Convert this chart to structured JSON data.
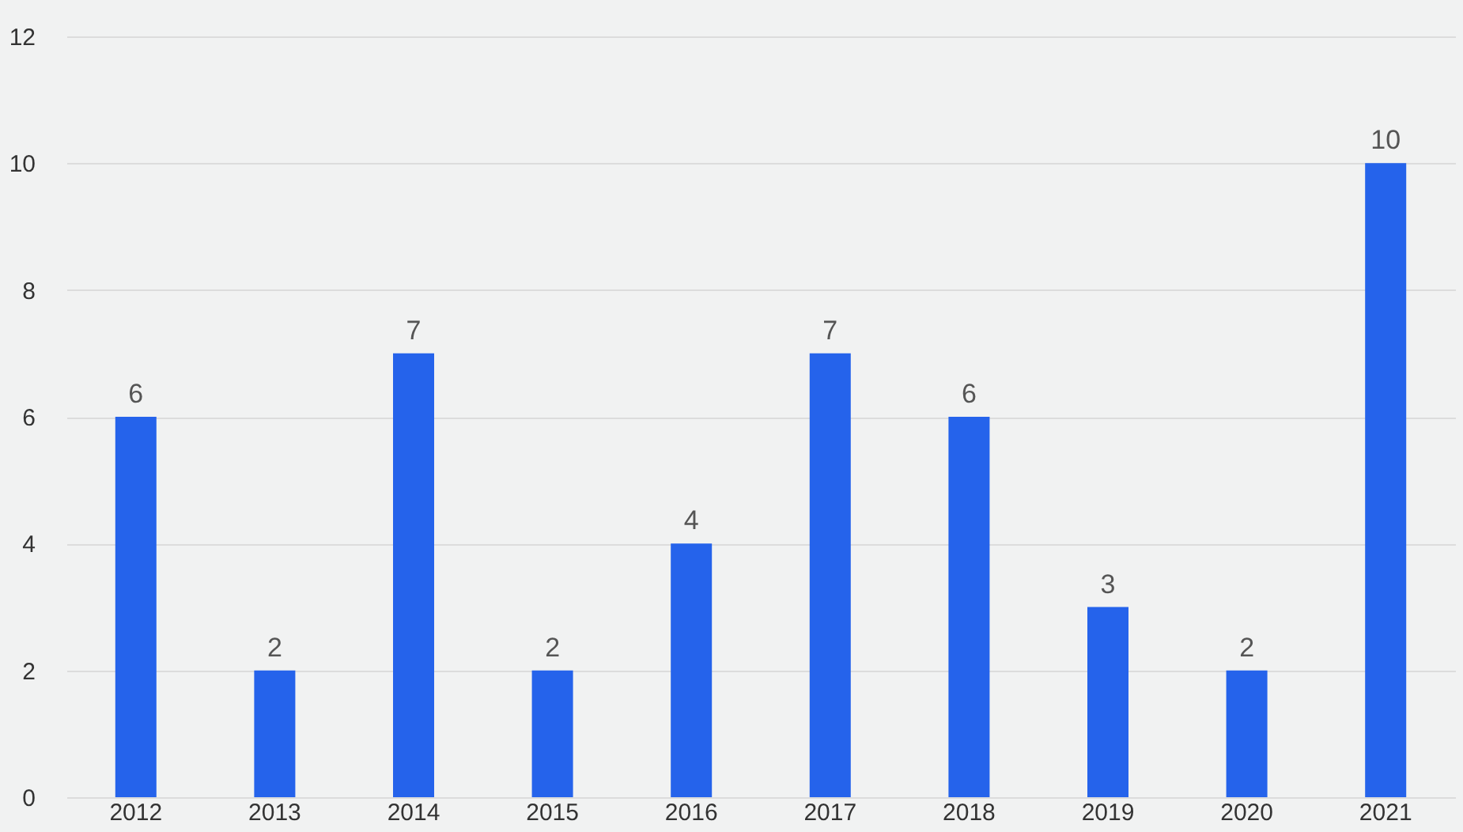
{
  "chart_data": {
    "type": "bar",
    "categories": [
      "2012",
      "2013",
      "2014",
      "2015",
      "2016",
      "2017",
      "2018",
      "2019",
      "2020",
      "2021"
    ],
    "values": [
      6,
      2,
      7,
      2,
      4,
      7,
      6,
      3,
      2,
      10
    ],
    "color": "#2563eb",
    "ylim": [
      0,
      12
    ],
    "yticks": [
      0,
      2,
      4,
      6,
      8,
      10,
      12
    ],
    "grid": "y",
    "data_labels": true
  }
}
